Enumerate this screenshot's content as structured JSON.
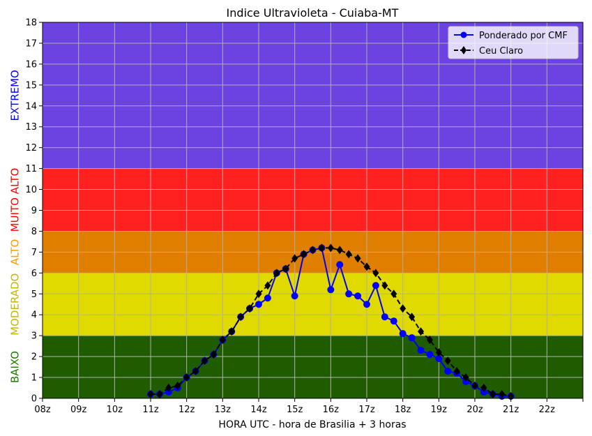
{
  "chart_data": {
    "type": "line",
    "title": "Indice Ultravioleta - Cuiaba-MT",
    "xlabel": "HORA UTC - hora de Brasilia + 3 horas",
    "ylabel": "",
    "xlim": [
      8,
      23
    ],
    "ylim": [
      0,
      18
    ],
    "grid": true,
    "legend_position": "top-right",
    "x_ticks": [
      8,
      9,
      10,
      11,
      12,
      13,
      14,
      15,
      16,
      17,
      18,
      19,
      20,
      21,
      22,
      23
    ],
    "x_tick_labels": [
      "08z",
      "09z",
      "10z",
      "11z",
      "12z",
      "13z",
      "14z",
      "15z",
      "16z",
      "17z",
      "18z",
      "19z",
      "20z",
      "21z",
      "22z",
      ""
    ],
    "y_ticks": [
      0,
      1,
      2,
      3,
      4,
      5,
      6,
      7,
      8,
      9,
      10,
      11,
      12,
      13,
      14,
      15,
      16,
      17,
      18
    ],
    "bands": [
      {
        "label": "BAIXO",
        "from": 0,
        "to": 3,
        "color": "#1f5c00",
        "label_color": "#1a7a00"
      },
      {
        "label": "MODERADO",
        "from": 3,
        "to": 6,
        "color": "#e0da00",
        "label_color": "#c8b400"
      },
      {
        "label": "ALTO",
        "from": 6,
        "to": 8,
        "color": "#e07e00",
        "label_color": "#ff9900"
      },
      {
        "label": "MUITO ALTO",
        "from": 8,
        "to": 11,
        "color": "#ff2020",
        "label_color": "#ff0000"
      },
      {
        "label": "EXTREMO",
        "from": 11,
        "to": 18,
        "color": "#6c43e0",
        "label_color": "#0000ff"
      }
    ],
    "x": [
      11,
      11.25,
      11.5,
      11.75,
      12,
      12.25,
      12.5,
      12.75,
      13,
      13.25,
      13.5,
      13.75,
      14,
      14.25,
      14.5,
      14.75,
      15,
      15.25,
      15.5,
      15.75,
      16,
      16.25,
      16.5,
      16.75,
      17,
      17.25,
      17.5,
      17.75,
      18,
      18.25,
      18.5,
      18.75,
      19,
      19.25,
      19.5,
      19.75,
      20,
      20.25,
      20.5,
      20.75,
      21
    ],
    "series": [
      {
        "name": "Ponderado por CMF",
        "color": "#0000ff",
        "marker": "circle",
        "style": "solid",
        "values": [
          0.2,
          0.2,
          0.3,
          0.5,
          1.0,
          1.3,
          1.8,
          2.1,
          2.8,
          3.2,
          3.9,
          4.3,
          4.5,
          4.8,
          6.0,
          6.2,
          4.9,
          6.9,
          7.1,
          7.2,
          5.2,
          6.4,
          5.0,
          4.9,
          4.5,
          5.4,
          3.9,
          3.7,
          3.1,
          2.9,
          2.3,
          2.1,
          1.9,
          1.3,
          1.2,
          0.8,
          0.6,
          0.3,
          0.2,
          0.1,
          0.1
        ]
      },
      {
        "name": "Ceu Claro",
        "color": "#000000",
        "marker": "diamond",
        "style": "dashed",
        "values": [
          0.2,
          0.2,
          0.5,
          0.6,
          1.0,
          1.3,
          1.8,
          2.1,
          2.8,
          3.2,
          3.9,
          4.3,
          5.0,
          5.4,
          6.0,
          6.2,
          6.7,
          6.9,
          7.1,
          7.2,
          7.2,
          7.1,
          6.9,
          6.7,
          6.3,
          6.0,
          5.4,
          5.0,
          4.3,
          3.9,
          3.2,
          2.8,
          2.2,
          1.8,
          1.3,
          1.0,
          0.6,
          0.5,
          0.2,
          0.2,
          0.1
        ]
      }
    ]
  }
}
